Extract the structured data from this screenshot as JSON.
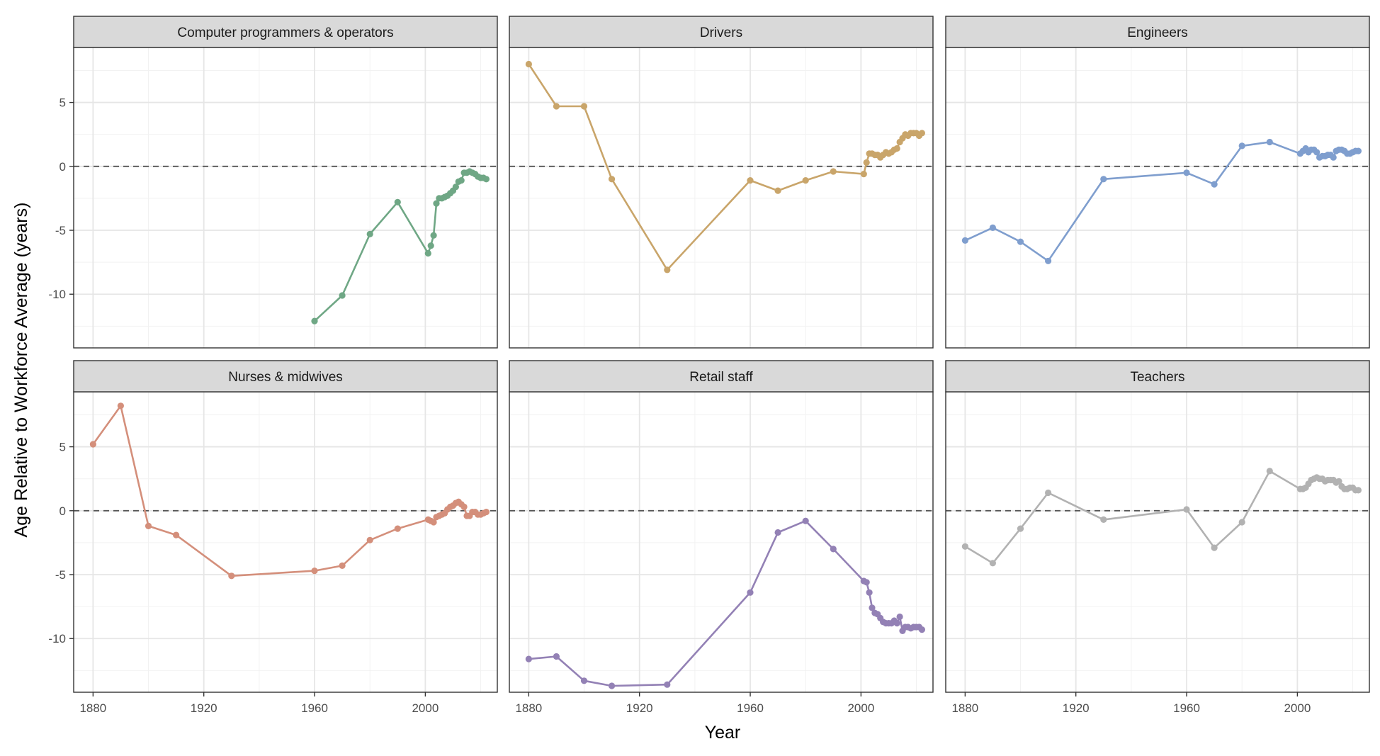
{
  "chart_data": {
    "type": "line",
    "layout": "faceted small multiples, 2 rows x 3 columns, shared axes",
    "xlabel": "Year",
    "ylabel": "Age Relative to Workforce Average (years)",
    "xlim": [
      1873,
      2026
    ],
    "ylim": [
      -14.2,
      9.3
    ],
    "x_ticks": [
      1880,
      1920,
      1960,
      2000
    ],
    "y_ticks": [
      5,
      0,
      -5,
      -10
    ],
    "reference_line": {
      "y": 0,
      "style": "dashed"
    },
    "grid": true,
    "legend": "none",
    "panels": [
      {
        "name": "Computer programmers & operators",
        "color": "#6fa785",
        "points": [
          [
            1960,
            -12.1
          ],
          [
            1970,
            -10.1
          ],
          [
            1980,
            -5.3
          ],
          [
            1990,
            -2.8
          ],
          [
            2001,
            -6.8
          ],
          [
            2002,
            -6.2
          ],
          [
            2003,
            -5.4
          ],
          [
            2004,
            -2.9
          ],
          [
            2005,
            -2.5
          ],
          [
            2006,
            -2.5
          ],
          [
            2007,
            -2.4
          ],
          [
            2008,
            -2.3
          ],
          [
            2009,
            -2.1
          ],
          [
            2010,
            -1.9
          ],
          [
            2011,
            -1.6
          ],
          [
            2012,
            -1.2
          ],
          [
            2013,
            -1.1
          ],
          [
            2014,
            -0.5
          ],
          [
            2015,
            -0.5
          ],
          [
            2016,
            -0.4
          ],
          [
            2017,
            -0.5
          ],
          [
            2018,
            -0.6
          ],
          [
            2019,
            -0.8
          ],
          [
            2020,
            -0.9
          ],
          [
            2021,
            -0.9
          ],
          [
            2022,
            -1.0
          ]
        ]
      },
      {
        "name": "Drivers",
        "color": "#c9a56a",
        "points": [
          [
            1880,
            8.0
          ],
          [
            1890,
            4.7
          ],
          [
            1900,
            4.7
          ],
          [
            1910,
            -1.0
          ],
          [
            1930,
            -8.1
          ],
          [
            1960,
            -1.1
          ],
          [
            1970,
            -1.9
          ],
          [
            1980,
            -1.1
          ],
          [
            1990,
            -0.4
          ],
          [
            2001,
            -0.6
          ],
          [
            2002,
            0.3
          ],
          [
            2003,
            1.0
          ],
          [
            2004,
            1.0
          ],
          [
            2005,
            0.9
          ],
          [
            2006,
            0.9
          ],
          [
            2007,
            0.7
          ],
          [
            2008,
            0.9
          ],
          [
            2009,
            1.1
          ],
          [
            2010,
            1.0
          ],
          [
            2011,
            1.1
          ],
          [
            2012,
            1.3
          ],
          [
            2013,
            1.4
          ],
          [
            2014,
            1.9
          ],
          [
            2015,
            2.2
          ],
          [
            2016,
            2.5
          ],
          [
            2017,
            2.4
          ],
          [
            2018,
            2.6
          ],
          [
            2019,
            2.6
          ],
          [
            2020,
            2.6
          ],
          [
            2021,
            2.4
          ],
          [
            2022,
            2.6
          ]
        ]
      },
      {
        "name": "Engineers",
        "color": "#7f9ece",
        "points": [
          [
            1880,
            -5.8
          ],
          [
            1890,
            -4.8
          ],
          [
            1900,
            -5.9
          ],
          [
            1910,
            -7.4
          ],
          [
            1930,
            -1.0
          ],
          [
            1960,
            -0.5
          ],
          [
            1970,
            -1.4
          ],
          [
            1980,
            1.6
          ],
          [
            1990,
            1.9
          ],
          [
            2001,
            1.0
          ],
          [
            2002,
            1.2
          ],
          [
            2003,
            1.4
          ],
          [
            2004,
            1.1
          ],
          [
            2005,
            1.3
          ],
          [
            2006,
            1.3
          ],
          [
            2007,
            1.1
          ],
          [
            2008,
            0.7
          ],
          [
            2009,
            0.8
          ],
          [
            2010,
            0.8
          ],
          [
            2011,
            0.9
          ],
          [
            2012,
            0.9
          ],
          [
            2013,
            0.7
          ],
          [
            2014,
            1.2
          ],
          [
            2015,
            1.3
          ],
          [
            2016,
            1.3
          ],
          [
            2017,
            1.2
          ],
          [
            2018,
            1.0
          ],
          [
            2019,
            1.0
          ],
          [
            2020,
            1.1
          ],
          [
            2021,
            1.2
          ],
          [
            2022,
            1.2
          ]
        ]
      },
      {
        "name": "Nurses & midwives",
        "color": "#d48f7b",
        "points": [
          [
            1880,
            5.2
          ],
          [
            1890,
            8.2
          ],
          [
            1900,
            -1.2
          ],
          [
            1910,
            -1.9
          ],
          [
            1930,
            -5.1
          ],
          [
            1960,
            -4.7
          ],
          [
            1970,
            -4.3
          ],
          [
            1980,
            -2.3
          ],
          [
            1990,
            -1.4
          ],
          [
            2001,
            -0.7
          ],
          [
            2002,
            -0.8
          ],
          [
            2003,
            -0.9
          ],
          [
            2004,
            -0.5
          ],
          [
            2005,
            -0.4
          ],
          [
            2006,
            -0.3
          ],
          [
            2007,
            -0.2
          ],
          [
            2008,
            0.1
          ],
          [
            2009,
            0.3
          ],
          [
            2010,
            0.4
          ],
          [
            2011,
            0.6
          ],
          [
            2012,
            0.7
          ],
          [
            2013,
            0.5
          ],
          [
            2014,
            0.3
          ],
          [
            2015,
            -0.4
          ],
          [
            2016,
            -0.4
          ],
          [
            2017,
            -0.1
          ],
          [
            2018,
            -0.1
          ],
          [
            2019,
            -0.3
          ],
          [
            2020,
            -0.3
          ],
          [
            2021,
            -0.2
          ],
          [
            2022,
            -0.1
          ]
        ]
      },
      {
        "name": "Retail staff",
        "color": "#9381b5",
        "points": [
          [
            1880,
            -11.6
          ],
          [
            1890,
            -11.4
          ],
          [
            1900,
            -13.3
          ],
          [
            1910,
            -13.7
          ],
          [
            1930,
            -13.6
          ],
          [
            1960,
            -6.4
          ],
          [
            1970,
            -1.7
          ],
          [
            1980,
            -0.8
          ],
          [
            1990,
            -3.0
          ],
          [
            2001,
            -5.5
          ],
          [
            2002,
            -5.6
          ],
          [
            2003,
            -6.4
          ],
          [
            2004,
            -7.6
          ],
          [
            2005,
            -8.0
          ],
          [
            2006,
            -8.1
          ],
          [
            2007,
            -8.4
          ],
          [
            2008,
            -8.7
          ],
          [
            2009,
            -8.8
          ],
          [
            2010,
            -8.8
          ],
          [
            2011,
            -8.8
          ],
          [
            2012,
            -8.6
          ],
          [
            2013,
            -8.8
          ],
          [
            2014,
            -8.3
          ],
          [
            2015,
            -9.4
          ],
          [
            2016,
            -9.1
          ],
          [
            2017,
            -9.1
          ],
          [
            2018,
            -9.2
          ],
          [
            2019,
            -9.1
          ],
          [
            2020,
            -9.1
          ],
          [
            2021,
            -9.1
          ],
          [
            2022,
            -9.3
          ]
        ]
      },
      {
        "name": "Teachers",
        "color": "#b2b2b2",
        "points": [
          [
            1880,
            -2.8
          ],
          [
            1890,
            -4.1
          ],
          [
            1900,
            -1.4
          ],
          [
            1910,
            1.4
          ],
          [
            1930,
            -0.7
          ],
          [
            1960,
            0.1
          ],
          [
            1970,
            -2.9
          ],
          [
            1980,
            -0.9
          ],
          [
            1990,
            3.1
          ],
          [
            2001,
            1.7
          ],
          [
            2002,
            1.7
          ],
          [
            2003,
            1.8
          ],
          [
            2004,
            2.1
          ],
          [
            2005,
            2.4
          ],
          [
            2006,
            2.5
          ],
          [
            2007,
            2.6
          ],
          [
            2008,
            2.5
          ],
          [
            2009,
            2.5
          ],
          [
            2010,
            2.3
          ],
          [
            2011,
            2.4
          ],
          [
            2012,
            2.4
          ],
          [
            2013,
            2.4
          ],
          [
            2014,
            2.2
          ],
          [
            2015,
            2.3
          ],
          [
            2016,
            1.9
          ],
          [
            2017,
            1.7
          ],
          [
            2018,
            1.7
          ],
          [
            2019,
            1.8
          ],
          [
            2020,
            1.8
          ],
          [
            2021,
            1.6
          ],
          [
            2022,
            1.6
          ]
        ]
      }
    ]
  }
}
